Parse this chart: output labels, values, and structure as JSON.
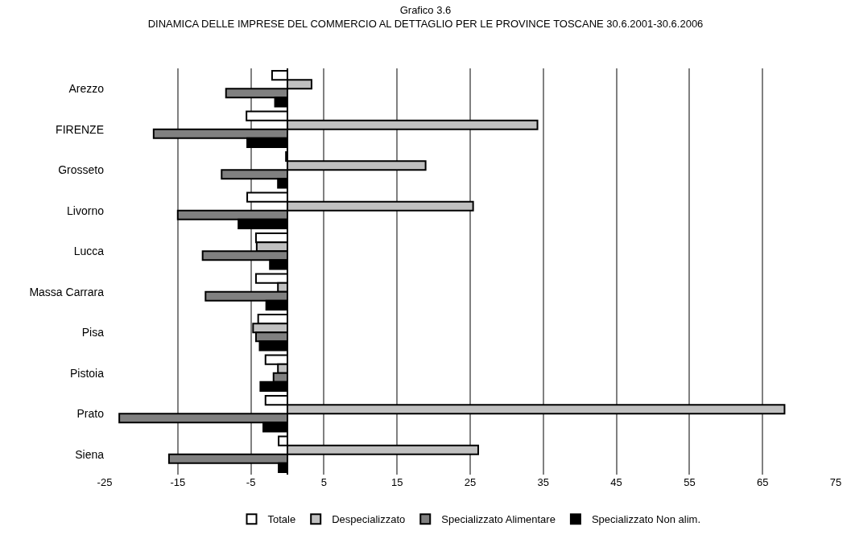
{
  "chart_data": {
    "type": "bar",
    "orientation": "horizontal",
    "title": "Grafico 3.6",
    "subtitle": "DINAMICA DELLE IMPRESE DEL COMMERCIO AL DETTAGLIO PER LE PROVINCE TOSCANE 30.6.2001-30.6.2006",
    "categories": [
      "Arezzo",
      "FIRENZE",
      "Grosseto",
      "Livorno",
      "Lucca",
      "Massa Carrara",
      "Pisa",
      "Pistoia",
      "Prato",
      "Siena"
    ],
    "series": [
      {
        "name": "Totale",
        "color": "#ffffff",
        "values": [
          -2.1,
          -5.6,
          -0.2,
          -5.5,
          -4.3,
          -4.3,
          -4.0,
          -3.0,
          -3.0,
          -1.2
        ]
      },
      {
        "name": "Despecializzato",
        "color": "#c0c0c0",
        "values": [
          3.3,
          34.2,
          18.9,
          25.4,
          -4.2,
          -1.3,
          -4.7,
          -1.3,
          68.0,
          26.1
        ]
      },
      {
        "name": "Specializzato Alimentare",
        "color": "#808080",
        "values": [
          -8.4,
          -18.3,
          -9.0,
          -15.0,
          -11.6,
          -11.2,
          -4.3,
          -1.9,
          -23.0,
          -16.2
        ]
      },
      {
        "name": "Specializzato Non alim.",
        "color": "#000000",
        "values": [
          -1.7,
          -5.5,
          -1.3,
          -6.7,
          -2.4,
          -2.9,
          -3.8,
          -3.7,
          -3.3,
          -1.2
        ]
      }
    ],
    "xlim": [
      -25,
      75
    ],
    "xticks": [
      -25,
      -15,
      -5,
      5,
      15,
      25,
      35,
      45,
      55,
      65,
      75
    ],
    "grid": "x",
    "legend": "bottom"
  }
}
